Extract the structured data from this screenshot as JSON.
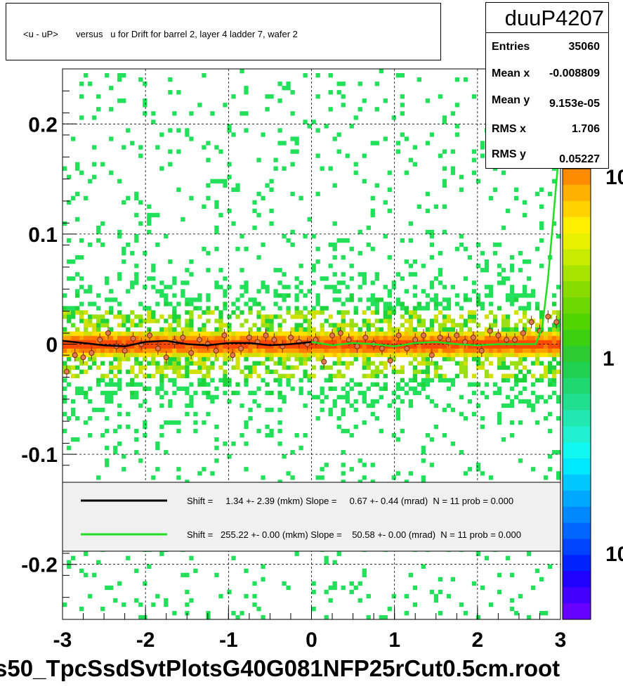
{
  "title": "<u - uP>       versus   u for Drift for barrel 2, layer 4 ladder 7, wafer 2",
  "stats": {
    "name": "duuP4207",
    "rows": [
      {
        "key": "Entries",
        "value": "35060"
      },
      {
        "key": "Mean x",
        "value": "-0.008809"
      },
      {
        "key": "Mean y",
        "value": "9.153e-05"
      },
      {
        "key": "RMS x",
        "value": "1.706"
      },
      {
        "key": "RMS y",
        "value": "0.05227"
      }
    ]
  },
  "footer": "s50_TpcSsdSvtPlotsG40G081NFP25rCut0.5cm.root",
  "legend": [
    {
      "text": "Shift =     1.34 +- 2.39 (mkm) Slope =     0.67 +- 0.44 (mrad)  N = 11 prob = 0.000",
      "color": "#000000"
    },
    {
      "text": "Shift =   255.22 +- 0.00 (mkm) Slope =    50.58 +- 0.00 (mrad)  N = 11 prob = 0.000",
      "color": "#22dd22"
    }
  ],
  "colorbar": {
    "tick_labels": [
      "10",
      "1",
      "10"
    ]
  },
  "chart_data": {
    "type": "heatmap",
    "xlim": [
      -3,
      3
    ],
    "ylim": [
      -0.25,
      0.25
    ],
    "x_ticks": [
      -3,
      -2,
      -1,
      0,
      1,
      2,
      3
    ],
    "x_tick_labels": [
      "-3",
      "-2",
      "-1",
      "0",
      "1",
      "2",
      "3"
    ],
    "y_ticks": [
      -0.2,
      -0.1,
      0,
      0.1,
      0.2
    ],
    "y_tick_labels": [
      "-0.2",
      "-0.1",
      "0",
      "0.1",
      "0.2"
    ],
    "grid": true,
    "band_center": 0.0,
    "band_rms_y": 0.05227,
    "profile_points": {
      "x": [
        -2.95,
        -2.85,
        -2.75,
        -2.65,
        -2.55,
        -2.45,
        -2.35,
        -2.25,
        -2.15,
        -2.05,
        -1.95,
        -1.85,
        -1.75,
        -1.65,
        -1.55,
        -1.45,
        -1.35,
        -1.25,
        -1.15,
        -1.05,
        -0.95,
        -0.85,
        -0.75,
        -0.65,
        -0.55,
        -0.45,
        -0.35,
        -0.25,
        -0.15,
        -0.05,
        0.05,
        0.15,
        0.25,
        0.35,
        0.45,
        0.55,
        0.65,
        0.75,
        0.85,
        0.95,
        1.05,
        1.15,
        1.25,
        1.35,
        1.45,
        1.55,
        1.65,
        1.75,
        1.85,
        1.95,
        2.05,
        2.15,
        2.25,
        2.35,
        2.45,
        2.55,
        2.65,
        2.75,
        2.85,
        2.95
      ],
      "y": [
        -0.025,
        -0.01,
        -0.012,
        -0.008,
        0.004,
        0.01,
        -0.002,
        -0.006,
        0.005,
        0.0,
        0.008,
        -0.004,
        -0.012,
        0.002,
        0.006,
        -0.008,
        0.004,
        0.0,
        -0.006,
        0.008,
        -0.01,
        -0.004,
        0.006,
        0.002,
        0.008,
        0.004,
        -0.002,
        0.006,
        0.002,
        0.0,
        0.004,
        -0.016,
        0.008,
        0.01,
        0.004,
        -0.002,
        0.006,
        0.0,
        -0.004,
        -0.015,
        0.008,
        -0.004,
        0.004,
        0.008,
        -0.01,
        0.006,
        0.004,
        0.008,
        0.002,
        0.006,
        -0.006,
        0.012,
        0.008,
        0.004,
        0.004,
        0.01,
        0.02,
        0.012,
        0.025,
        0.02
      ]
    },
    "fit_black": {
      "x": [
        -3.0,
        -2.75,
        -2.5,
        -2.25,
        -2.0,
        -1.75,
        -1.5,
        -1.25,
        -1.0,
        -0.75,
        -0.5,
        -0.25,
        0.0
      ],
      "y": [
        0.003,
        0.001,
        -0.001,
        -0.002,
        0.002,
        0.003,
        0.0,
        -0.001,
        0.001,
        0.001,
        -0.001,
        0.0,
        0.002
      ]
    },
    "fit_green": {
      "x": [
        0.0,
        0.25,
        0.5,
        0.75,
        1.0,
        1.25,
        1.5,
        1.75,
        2.0,
        2.25,
        2.5,
        2.7,
        2.78,
        2.85,
        2.92,
        3.0
      ],
      "y": [
        0.002,
        -0.001,
        0.001,
        0.0,
        -0.002,
        0.001,
        0.002,
        0.0,
        -0.001,
        0.0,
        0.0,
        0.0,
        0.015,
        0.06,
        0.12,
        0.19
      ]
    }
  }
}
